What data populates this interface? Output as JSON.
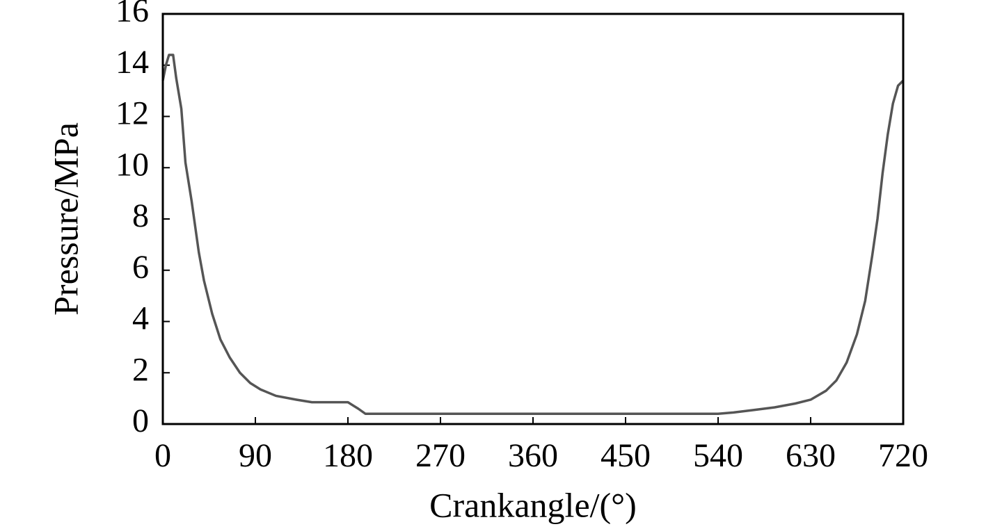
{
  "chart_data": {
    "type": "line",
    "x_label": "Crankangle/(°)",
    "y_label": "Pressure/MPa",
    "xlim": [
      0,
      720
    ],
    "xticks": [
      0,
      90,
      180,
      270,
      360,
      450,
      540,
      630,
      720
    ],
    "ylim": [
      0,
      16
    ],
    "yticks": [
      0,
      2,
      4,
      6,
      8,
      10,
      12,
      14,
      16
    ],
    "grid": false,
    "series": [
      {
        "color": "#555555",
        "x": [
          0,
          3,
          6,
          10,
          13,
          18,
          22,
          28,
          35,
          40,
          48,
          56,
          65,
          75,
          85,
          95,
          110,
          130,
          145,
          180,
          190,
          197,
          540,
          555,
          575,
          595,
          615,
          630,
          645,
          655,
          665,
          675,
          683,
          690,
          695,
          700,
          705,
          710,
          715,
          720
        ],
        "values": [
          13.4,
          14.0,
          14.4,
          14.4,
          13.5,
          12.3,
          10.2,
          8.7,
          6.7,
          5.6,
          4.3,
          3.3,
          2.6,
          2.0,
          1.6,
          1.35,
          1.1,
          0.95,
          0.85,
          0.85,
          0.6,
          0.4,
          0.4,
          0.45,
          0.55,
          0.65,
          0.8,
          0.95,
          1.3,
          1.7,
          2.4,
          3.5,
          4.8,
          6.6,
          8.0,
          9.8,
          11.3,
          12.5,
          13.2,
          13.4
        ]
      }
    ]
  }
}
